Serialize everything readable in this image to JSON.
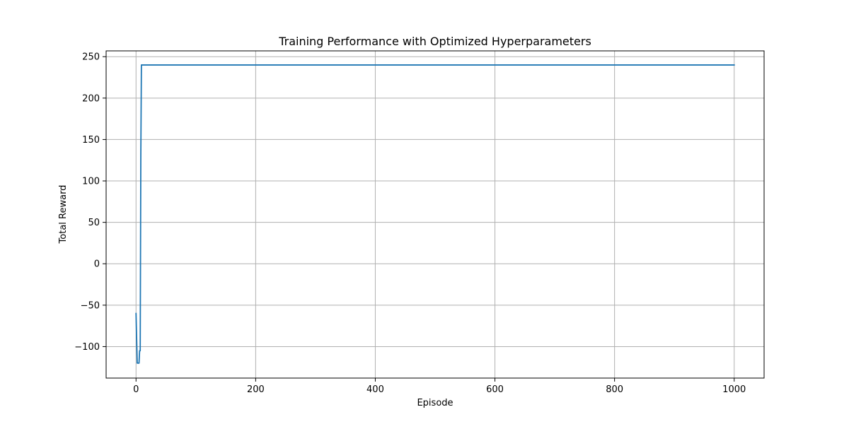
{
  "chart_data": {
    "type": "line",
    "title": "Training Performance with Optimized Hyperparameters",
    "xlabel": "Episode",
    "ylabel": "Total Reward",
    "xlim": [
      -50,
      1050
    ],
    "ylim": [
      -138,
      257
    ],
    "xticks": [
      0,
      200,
      400,
      600,
      800,
      1000
    ],
    "yticks": [
      -100,
      -50,
      0,
      50,
      100,
      150,
      200,
      250
    ],
    "grid": true,
    "legend": "none",
    "series": [
      {
        "color": "#1f77b4",
        "x": [
          0,
          2,
          3,
          4,
          5,
          6,
          7,
          8,
          9,
          1000
        ],
        "y": [
          -60,
          -120,
          -120,
          -120,
          -120,
          -105,
          -105,
          130,
          240,
          240
        ]
      }
    ]
  }
}
